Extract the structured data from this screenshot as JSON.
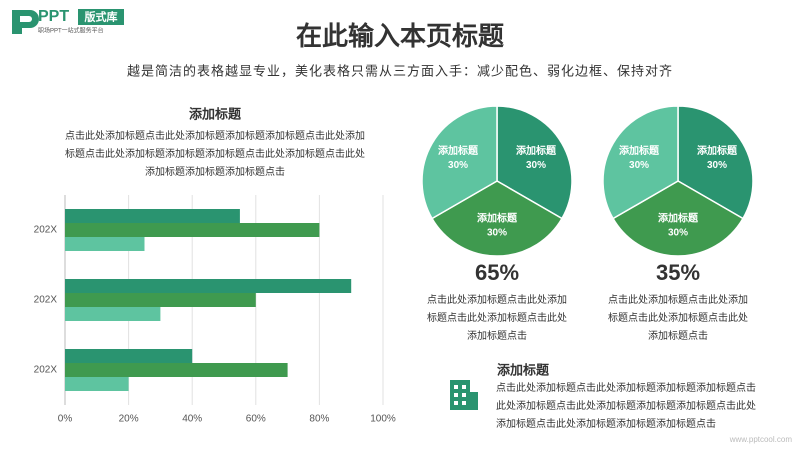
{
  "logo": {
    "brand": "PPT",
    "badge": "版式库",
    "tagline": "职场PPT一站式服务平台"
  },
  "title": "在此输入本页标题",
  "subtitle": "越是简洁的表格越显专业，美化表格只需从三方面入手：减少配色、弱化边框、保持对齐",
  "chart_data": [
    {
      "type": "bar",
      "orientation": "horizontal",
      "title": "添加标题",
      "description": "点击此处添加标题点击此处添加标题添加标题添加标题点击此处添加标题点击此处添加标题添加标题添加标题点击此处添加标题点击此处添加标题添加标题添加标题点击",
      "categories": [
        "202X",
        "202X",
        "202X"
      ],
      "series": [
        {
          "color": "#2a9470",
          "values": [
            55,
            90,
            40
          ]
        },
        {
          "color": "#3f9a4f",
          "values": [
            80,
            60,
            70
          ]
        },
        {
          "color": "#5ec4a0",
          "values": [
            25,
            30,
            20
          ]
        }
      ],
      "xlim": [
        0,
        100
      ],
      "xticks": [
        {
          "value": 0,
          "label": "0%"
        },
        {
          "value": 20,
          "label": "20%"
        },
        {
          "value": 40,
          "label": "40%"
        },
        {
          "value": 60,
          "label": "60%"
        },
        {
          "value": 80,
          "label": "80%"
        },
        {
          "value": 100,
          "label": "100%"
        }
      ],
      "grid": true
    },
    {
      "type": "pie",
      "labels": [
        "添加标题",
        "添加标题",
        "添加标题"
      ],
      "values": [
        30,
        30,
        30
      ],
      "value_labels": [
        "30%",
        "30%",
        "30%"
      ],
      "colors": [
        "#2a9470",
        "#3f9a4f",
        "#5ec4a0"
      ],
      "headline": "65%",
      "caption": "点击此处添加标题点击此处添加标题点击此处添加标题点击此处添加标题点击"
    },
    {
      "type": "pie",
      "labels": [
        "添加标题",
        "添加标题",
        "添加标题"
      ],
      "values": [
        30,
        30,
        30
      ],
      "value_labels": [
        "30%",
        "30%",
        "30%"
      ],
      "colors": [
        "#2a9470",
        "#3f9a4f",
        "#5ec4a0"
      ],
      "headline": "35%",
      "caption": "点击此处添加标题点击此处添加标题点击此处添加标题点击此处添加标题点击"
    }
  ],
  "note": {
    "title": "添加标题",
    "text": "点击此处添加标题点击此处添加标题添加标题添加标题点击此处添加标题点击此处添加标题添加标题添加标题点击此处添加标题点击此处添加标题添加标题添加标题点击"
  },
  "watermark": "www.pptcool.com"
}
